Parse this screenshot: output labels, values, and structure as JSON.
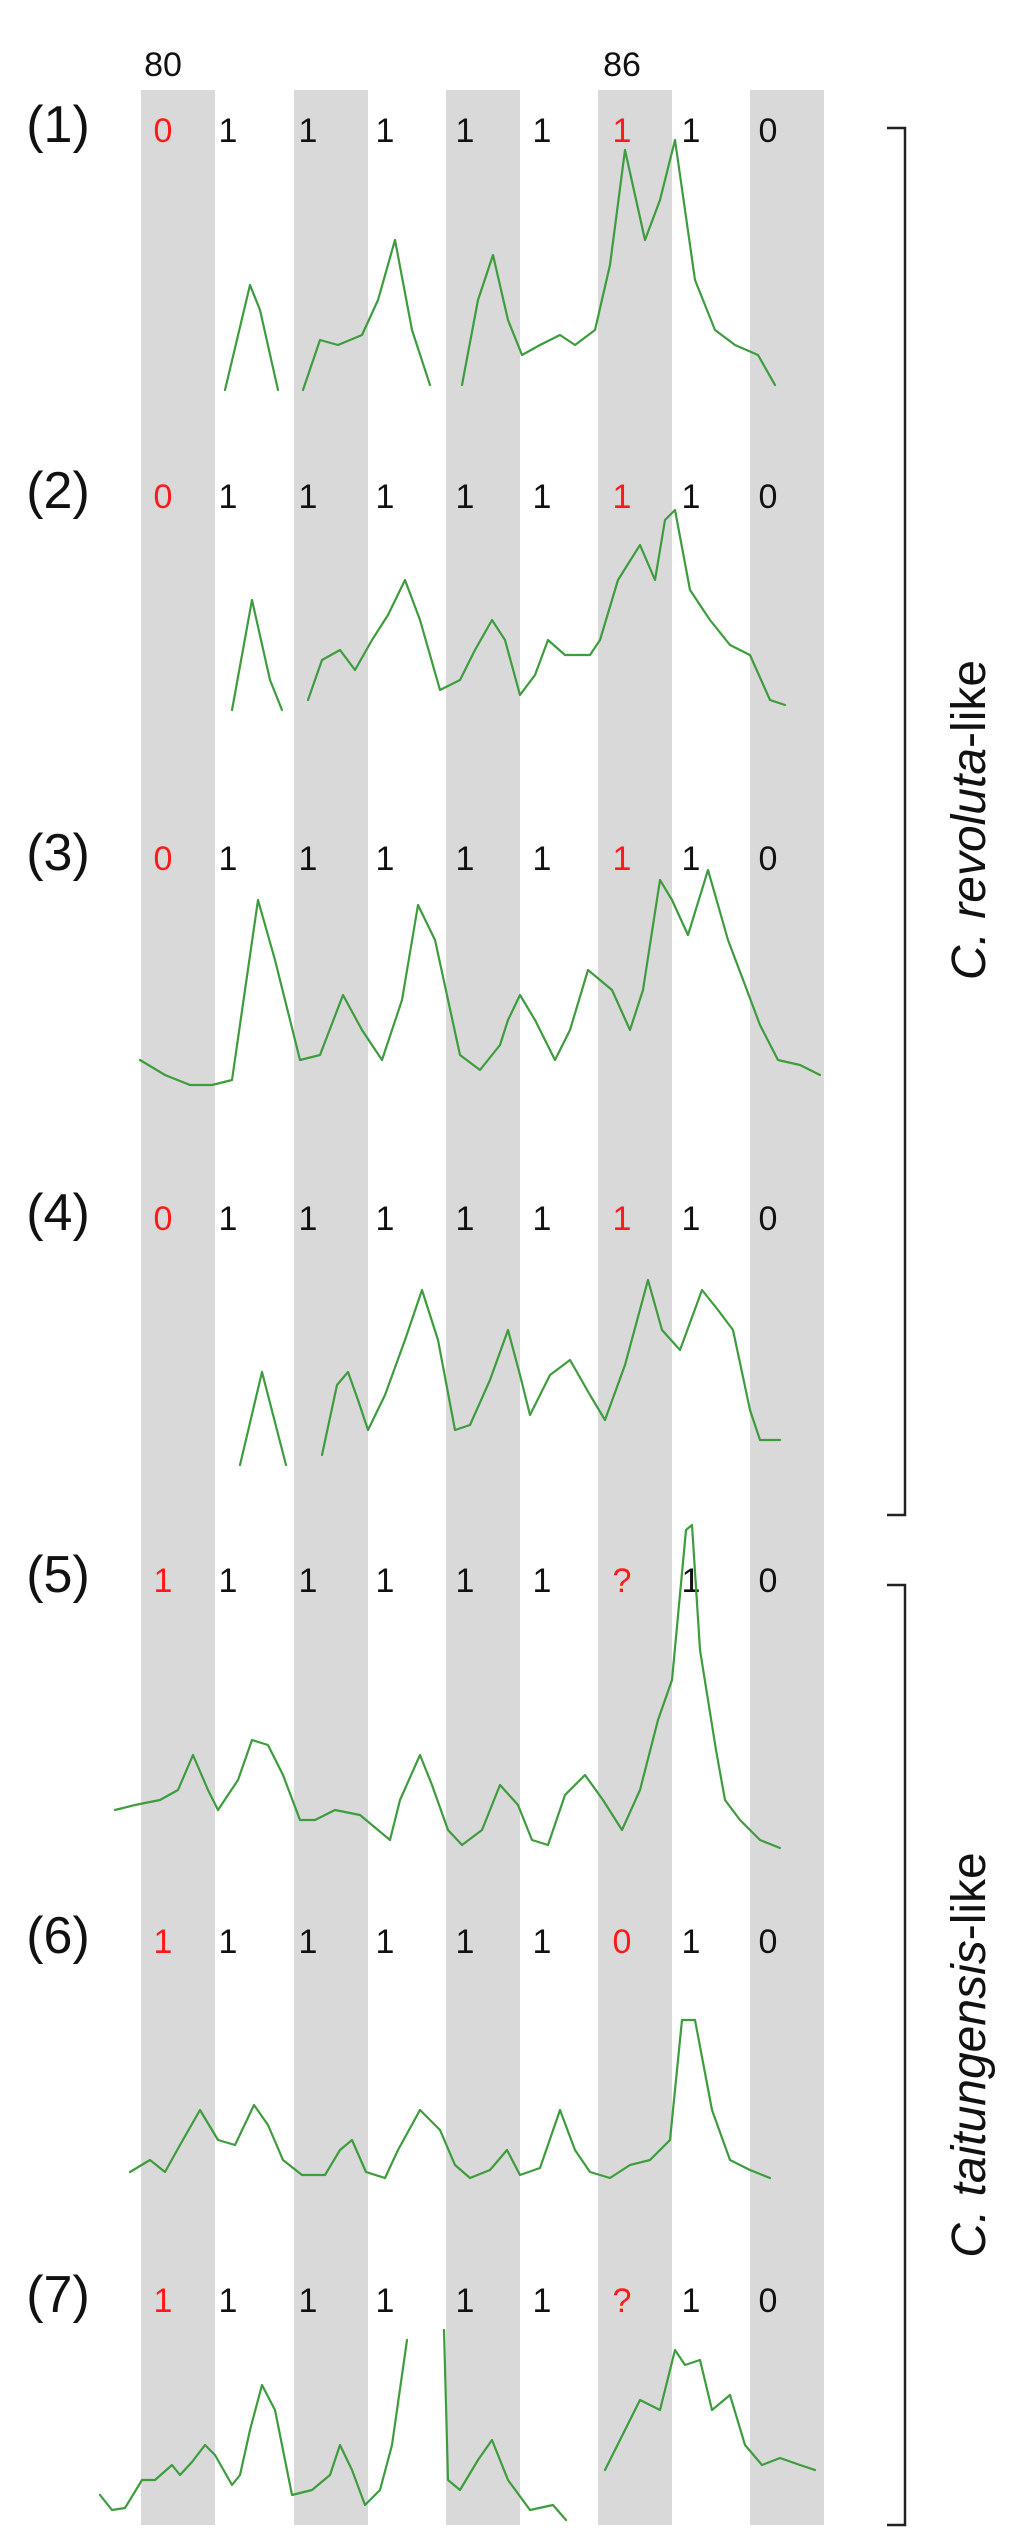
{
  "figure": {
    "position_ticks": [
      "80",
      "86"
    ],
    "highlight_color": "#d9d9d9",
    "trace_color": "#3d9c3d",
    "default_text_color": "#111111",
    "accent_text_color": "#ff1a1a",
    "samples": [
      {
        "label": "(1)",
        "calls": [
          {
            "text": "0",
            "highlight": true
          },
          {
            "text": "1",
            "highlight": false
          },
          {
            "text": "1",
            "highlight": false
          },
          {
            "text": "1",
            "highlight": false
          },
          {
            "text": "1",
            "highlight": false
          },
          {
            "text": "1",
            "highlight": false
          },
          {
            "text": "1",
            "highlight": true
          },
          {
            "text": "1",
            "highlight": false
          },
          {
            "text": "0",
            "highlight": false
          }
        ]
      },
      {
        "label": "(2)",
        "calls": [
          {
            "text": "0",
            "highlight": true
          },
          {
            "text": "1",
            "highlight": false
          },
          {
            "text": "1",
            "highlight": false
          },
          {
            "text": "1",
            "highlight": false
          },
          {
            "text": "1",
            "highlight": false
          },
          {
            "text": "1",
            "highlight": false
          },
          {
            "text": "1",
            "highlight": true
          },
          {
            "text": "1",
            "highlight": false
          },
          {
            "text": "0",
            "highlight": false
          }
        ]
      },
      {
        "label": "(3)",
        "calls": [
          {
            "text": "0",
            "highlight": true
          },
          {
            "text": "1",
            "highlight": false
          },
          {
            "text": "1",
            "highlight": false
          },
          {
            "text": "1",
            "highlight": false
          },
          {
            "text": "1",
            "highlight": false
          },
          {
            "text": "1",
            "highlight": false
          },
          {
            "text": "1",
            "highlight": true
          },
          {
            "text": "1",
            "highlight": false
          },
          {
            "text": "0",
            "highlight": false
          }
        ]
      },
      {
        "label": "(4)",
        "calls": [
          {
            "text": "0",
            "highlight": true
          },
          {
            "text": "1",
            "highlight": false
          },
          {
            "text": "1",
            "highlight": false
          },
          {
            "text": "1",
            "highlight": false
          },
          {
            "text": "1",
            "highlight": false
          },
          {
            "text": "1",
            "highlight": false
          },
          {
            "text": "1",
            "highlight": true
          },
          {
            "text": "1",
            "highlight": false
          },
          {
            "text": "0",
            "highlight": false
          }
        ]
      },
      {
        "label": "(5)",
        "calls": [
          {
            "text": "1",
            "highlight": true
          },
          {
            "text": "1",
            "highlight": false
          },
          {
            "text": "1",
            "highlight": false
          },
          {
            "text": "1",
            "highlight": false
          },
          {
            "text": "1",
            "highlight": false
          },
          {
            "text": "1",
            "highlight": false
          },
          {
            "text": "?",
            "highlight": true
          },
          {
            "text": "1",
            "highlight": false
          },
          {
            "text": "0",
            "highlight": false
          }
        ]
      },
      {
        "label": "(6)",
        "calls": [
          {
            "text": "1",
            "highlight": true
          },
          {
            "text": "1",
            "highlight": false
          },
          {
            "text": "1",
            "highlight": false
          },
          {
            "text": "1",
            "highlight": false
          },
          {
            "text": "1",
            "highlight": false
          },
          {
            "text": "1",
            "highlight": false
          },
          {
            "text": "0",
            "highlight": true
          },
          {
            "text": "1",
            "highlight": false
          },
          {
            "text": "0",
            "highlight": false
          }
        ]
      },
      {
        "label": "(7)",
        "calls": [
          {
            "text": "1",
            "highlight": true
          },
          {
            "text": "1",
            "highlight": false
          },
          {
            "text": "1",
            "highlight": false
          },
          {
            "text": "1",
            "highlight": false
          },
          {
            "text": "1",
            "highlight": false
          },
          {
            "text": "1",
            "highlight": false
          },
          {
            "text": "?",
            "highlight": true
          },
          {
            "text": "1",
            "highlight": false
          },
          {
            "text": "0",
            "highlight": false
          }
        ]
      }
    ],
    "groups": [
      {
        "italic": "C. revoluta",
        "suffix": "-like"
      },
      {
        "italic": "C. taitungensis",
        "suffix": "-like"
      }
    ]
  }
}
